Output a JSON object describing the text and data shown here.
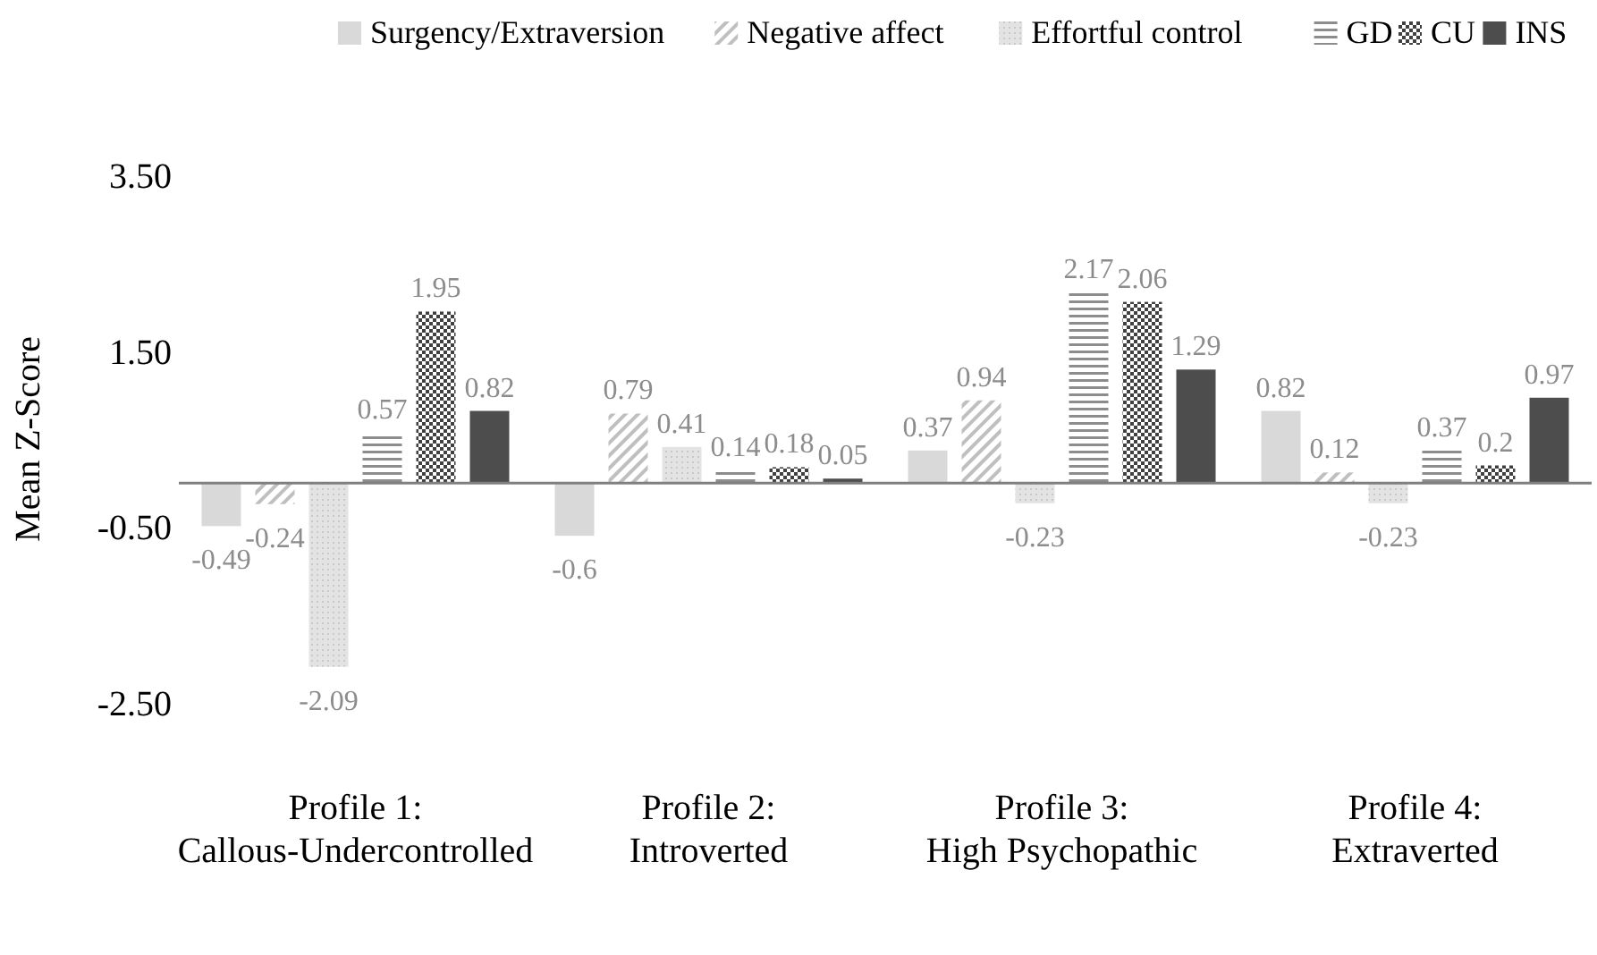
{
  "chart_data": {
    "type": "bar",
    "ylabel": "Mean Z-Score",
    "categories": [
      "Profile 1:\nCallous-Undercontrolled",
      "Profile 2:\nIntroverted",
      "Profile 3:\nHigh Psychopathic",
      "Profile 4:\nExtraverted"
    ],
    "series": [
      {
        "name": "Surgency/Extraversion",
        "color": "#d9d9d9",
        "values": [
          -0.49,
          -0.6,
          0.37,
          0.82
        ]
      },
      {
        "name": "Negative affect",
        "color": "#bfbfbf",
        "values": [
          -0.24,
          0.79,
          0.94,
          0.12
        ]
      },
      {
        "name": "Effortful control",
        "color": "#e3e3e3",
        "values": [
          -2.09,
          0.41,
          -0.23,
          -0.23
        ]
      },
      {
        "name": "GD",
        "color": "#8c8c8c",
        "values": [
          0.57,
          0.14,
          2.17,
          0.37
        ]
      },
      {
        "name": "CU",
        "color": "#404040",
        "values": [
          1.95,
          0.18,
          2.06,
          0.2
        ]
      },
      {
        "name": "INS",
        "color": "#4d4d4d",
        "values": [
          0.82,
          0.05,
          1.29,
          0.97
        ]
      }
    ],
    "ylim": [
      -2.5,
      3.5
    ],
    "yticks": [
      {
        "value": 3.5,
        "label": "3.50"
      },
      {
        "value": 1.5,
        "label": "1.50"
      },
      {
        "value": -0.5,
        "label": "-0.50"
      },
      {
        "value": -2.5,
        "label": "-2.50"
      }
    ],
    "data_labels": true,
    "legend": "top",
    "grid": false
  }
}
